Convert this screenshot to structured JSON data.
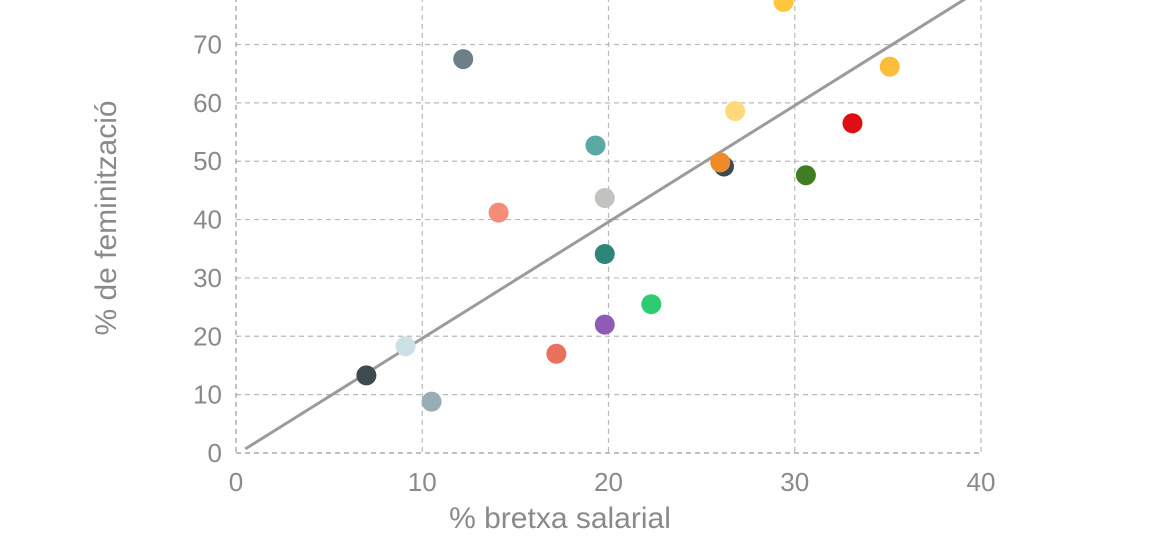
{
  "chart_data": {
    "type": "scatter",
    "xlabel": "% bretxa salarial",
    "ylabel": "% de feminització",
    "xlim": [
      0,
      40
    ],
    "ylim": [
      0,
      78
    ],
    "x_ticks": [
      0,
      10,
      20,
      30,
      40
    ],
    "y_ticks": [
      0,
      10,
      20,
      30,
      40,
      50,
      60,
      70
    ],
    "grid": true,
    "legend": "none",
    "trendline": {
      "x": [
        0.5,
        39.5
      ],
      "y": [
        0.7,
        78.5
      ]
    },
    "points": [
      {
        "x": 7.0,
        "y": 13.3,
        "color": "#3d4b4f"
      },
      {
        "x": 9.1,
        "y": 18.3,
        "color": "#cde0e6"
      },
      {
        "x": 10.5,
        "y": 8.8,
        "color": "#98adb4"
      },
      {
        "x": 12.2,
        "y": 67.5,
        "color": "#6b7f86"
      },
      {
        "x": 14.1,
        "y": 41.2,
        "color": "#f58c78"
      },
      {
        "x": 17.2,
        "y": 17.0,
        "color": "#e8705c"
      },
      {
        "x": 19.3,
        "y": 52.7,
        "color": "#5aa9a5"
      },
      {
        "x": 19.8,
        "y": 43.7,
        "color": "#c2c2c0"
      },
      {
        "x": 19.8,
        "y": 34.1,
        "color": "#2e8579"
      },
      {
        "x": 19.8,
        "y": 22.0,
        "color": "#8e5bb5"
      },
      {
        "x": 22.3,
        "y": 25.5,
        "color": "#2ecc71"
      },
      {
        "x": 26.2,
        "y": 49.1,
        "color": "#3c4a52"
      },
      {
        "x": 26.0,
        "y": 49.8,
        "color": "#ef8a2a"
      },
      {
        "x": 26.8,
        "y": 58.6,
        "color": "#ffd97a"
      },
      {
        "x": 29.4,
        "y": 77.3,
        "color": "#ffc73d"
      },
      {
        "x": 30.6,
        "y": 47.6,
        "color": "#3f7d22"
      },
      {
        "x": 33.1,
        "y": 56.5,
        "color": "#dd0f14"
      },
      {
        "x": 35.1,
        "y": 66.2,
        "color": "#fbbd3a"
      }
    ]
  }
}
